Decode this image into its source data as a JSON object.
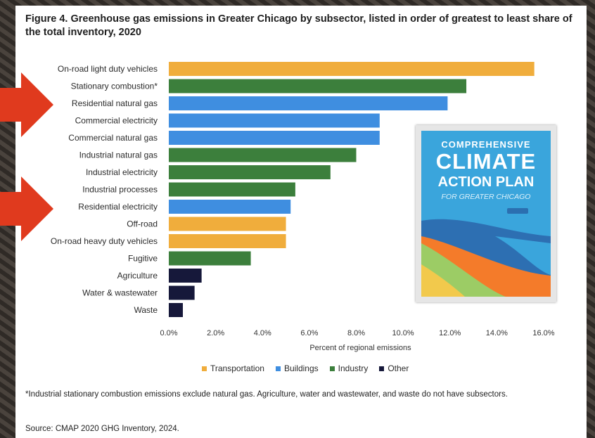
{
  "figure": {
    "title": "Figure 4. Greenhouse gas emissions in Greater Chicago by subsector, listed in order of greatest to least share of the total inventory, 2020",
    "footnote": "*Industrial stationary combustion emissions exclude natural gas. Agriculture, water and wastewater, and waste do not have subsectors.",
    "source": "Source: CMAP 2020 GHG Inventory, 2024."
  },
  "colors": {
    "Transportation": "#f0ad3c",
    "Buildings": "#3f8ee0",
    "Industry": "#3c7f3c",
    "Other": "#16183a",
    "arrow": "#e03a1e"
  },
  "chart_data": {
    "type": "bar",
    "orientation": "horizontal",
    "title": "Figure 4. Greenhouse gas emissions in Greater Chicago by subsector, listed in order of greatest to least share of the total inventory, 2020",
    "xlabel": "Percent of regional emissions",
    "ylabel": "",
    "xlim": [
      0,
      16
    ],
    "xticks": [
      "0.0%",
      "2.0%",
      "4.0%",
      "6.0%",
      "8.0%",
      "10.0%",
      "12.0%",
      "14.0%",
      "16.0%"
    ],
    "grid": false,
    "legend_position": "bottom",
    "legend": [
      "Transportation",
      "Buildings",
      "Industry",
      "Other"
    ],
    "categories": [
      "On-road light duty vehicles",
      "Stationary combustion*",
      "Residential natural gas",
      "Commercial electricity",
      "Commercial natural gas",
      "Industrial natural gas",
      "Industrial electricity",
      "Industrial processes",
      "Residential electricity",
      "Off-road",
      "On-road heavy duty vehicles",
      "Fugitive",
      "Agriculture",
      "Water & wastewater",
      "Waste"
    ],
    "values": [
      15.6,
      12.7,
      11.9,
      9.0,
      9.0,
      8.0,
      6.9,
      5.4,
      5.2,
      5.0,
      5.0,
      3.5,
      1.4,
      1.1,
      0.6
    ],
    "groups": [
      "Transportation",
      "Industry",
      "Buildings",
      "Buildings",
      "Buildings",
      "Industry",
      "Industry",
      "Industry",
      "Buildings",
      "Transportation",
      "Transportation",
      "Industry",
      "Other",
      "Other",
      "Other"
    ],
    "highlighted": [
      "Residential natural gas",
      "Residential electricity"
    ]
  },
  "cover": {
    "line1": "COMPREHENSIVE",
    "line2": "CLIMATE",
    "line3": "ACTION PLAN",
    "line4": "FOR GREATER CHICAGO"
  }
}
